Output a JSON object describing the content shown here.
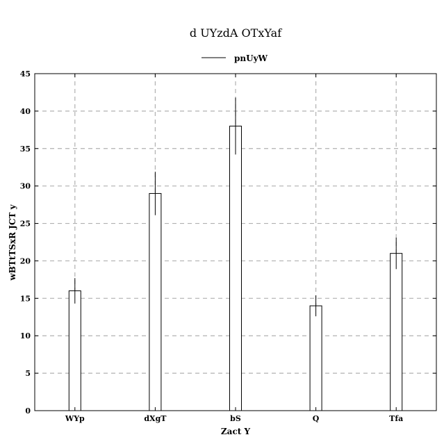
{
  "chart_data": {
    "type": "bar",
    "title": "d UYzdA OTxYaf",
    "xlabel": "Zact Y",
    "ylabel": "wBTtTSxR JCT y",
    "categories": [
      "WYp",
      "dXgT",
      "bS",
      "Q",
      "Tfa"
    ],
    "series": [
      {
        "name": "pnUyW",
        "values": [
          16,
          29,
          38,
          14,
          21
        ],
        "errors": [
          1.7,
          2.9,
          3.8,
          1.4,
          2.1
        ]
      }
    ],
    "ylim": [
      0,
      45
    ],
    "yticks": [
      0,
      5,
      10,
      15,
      20,
      25,
      30,
      35,
      40,
      45
    ],
    "grid": true,
    "legend_position": "top-center",
    "colors": {
      "bar_fill": "#ffffff",
      "bar_edge": "#000000",
      "grid": "#b0b0b0"
    }
  }
}
